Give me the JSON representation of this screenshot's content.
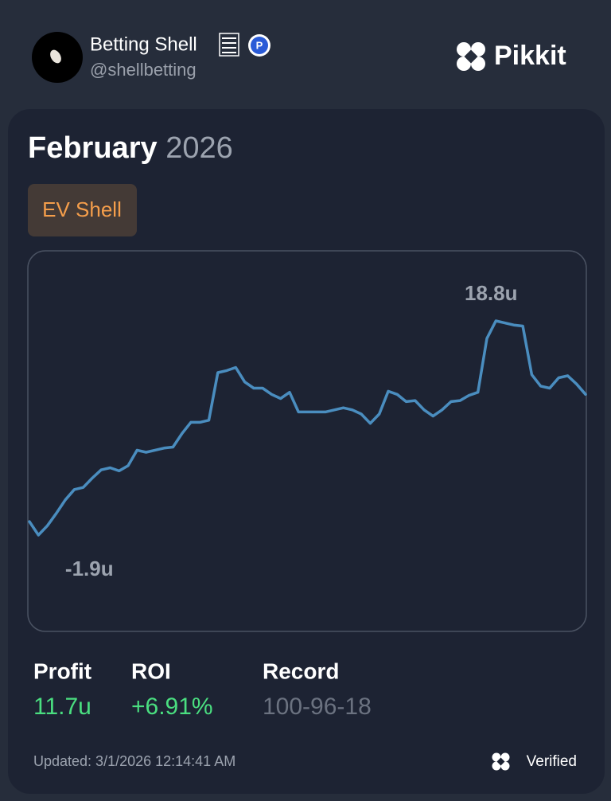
{
  "header": {
    "name": "Betting Shell",
    "handle": "@shellbetting",
    "brand": "Pikkit"
  },
  "card": {
    "month": "February",
    "year": "2026",
    "tag": "EV Shell",
    "stats": [
      {
        "label": "Profit",
        "value": "11.7u"
      },
      {
        "label": "ROI",
        "value": "+6.91%"
      },
      {
        "label": "Record",
        "value": "100-96-18"
      }
    ],
    "updated": "Updated: 3/1/2026 12:14:41 AM",
    "verified": "Verified"
  },
  "chart_data": {
    "type": "line",
    "color": "#4a8dbf",
    "max_label": "18.8u",
    "min_label": "-1.9u",
    "values": [
      -0.6,
      -1.9,
      -1.0,
      0.2,
      1.5,
      2.5,
      2.7,
      3.6,
      4.4,
      4.6,
      4.3,
      4.8,
      6.3,
      6.1,
      6.3,
      6.5,
      6.6,
      7.9,
      9.0,
      9.0,
      9.2,
      13.8,
      14.0,
      14.3,
      12.9,
      12.3,
      12.3,
      11.7,
      11.3,
      11.9,
      10.0,
      10.0,
      10.0,
      10.0,
      10.2,
      10.4,
      10.2,
      9.8,
      8.9,
      9.8,
      12.0,
      11.7,
      11.0,
      11.1,
      10.2,
      9.6,
      10.2,
      11.0,
      11.1,
      11.6,
      11.9,
      17.1,
      18.8,
      18.6,
      18.4,
      18.3,
      13.6,
      12.5,
      12.3,
      13.3,
      13.5,
      12.7,
      11.7
    ]
  }
}
